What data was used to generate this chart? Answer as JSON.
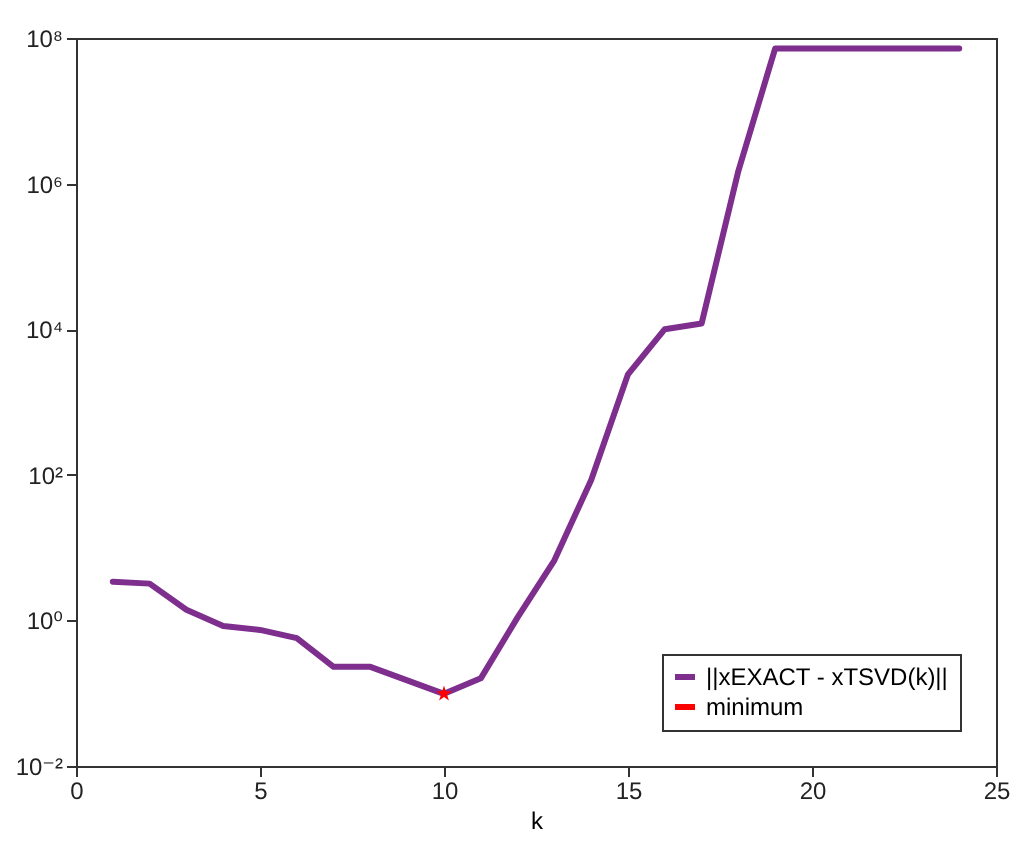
{
  "chart_data": {
    "type": "line",
    "xlabel": "k",
    "log": "y",
    "legend": "bottom right",
    "xlim": [
      0,
      25
    ],
    "xticks": [
      0,
      5,
      10,
      15,
      20,
      25
    ],
    "ylim": [
      0.01,
      100000000
    ],
    "yticks": [
      {
        "value": 0.01,
        "label": "10⁻²"
      },
      {
        "value": 1,
        "label": "10⁰"
      },
      {
        "value": 100,
        "label": "10²"
      },
      {
        "value": 10000,
        "label": "10⁴"
      },
      {
        "value": 1000000,
        "label": "10⁶"
      },
      {
        "value": 100000000,
        "label": "10⁸"
      }
    ],
    "series": [
      {
        "name": "||xEXACT - xTSVD(k)||",
        "color": "#7e2f8e",
        "x": [
          1,
          2,
          3,
          4,
          5,
          6,
          7,
          8,
          9,
          10,
          11,
          12,
          13,
          14,
          15,
          16,
          17,
          18,
          19,
          20,
          21,
          22,
          23,
          24
        ],
        "values": [
          3.4,
          3.2,
          1.4,
          0.84,
          0.74,
          0.57,
          0.23,
          0.23,
          0.15,
          0.098,
          0.16,
          1.1,
          6.7,
          85,
          2400,
          10000,
          12000,
          1500000,
          72000000,
          72000000,
          72000000,
          72000000,
          72000000,
          72000000
        ]
      },
      {
        "name": "minimum",
        "type": "scatter",
        "marker": "star",
        "color": "#ff0000",
        "x": [
          10
        ],
        "values": [
          0.098
        ]
      }
    ]
  }
}
